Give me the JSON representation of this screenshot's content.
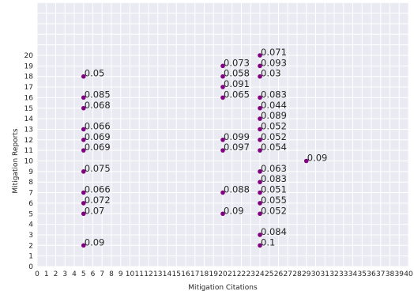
{
  "chart_data": {
    "type": "scatter",
    "title": "",
    "xlabel": "Mitigation Citations",
    "ylabel": "Mitigation Reports",
    "xlim": [
      0,
      40
    ],
    "ylim": [
      0,
      20
    ],
    "grid": true,
    "point_color": "#800080",
    "background_color": "#eaeaf2",
    "x_ticks": [
      "0",
      "1",
      "2",
      "3",
      "4",
      "5",
      "6",
      "7",
      "8",
      "9",
      "10",
      "11",
      "12",
      "13",
      "14",
      "15",
      "16",
      "17",
      "18",
      "19",
      "20",
      "21",
      "22",
      "23",
      "24",
      "25",
      "26",
      "27",
      "28",
      "29",
      "30",
      "31",
      "32",
      "33",
      "34",
      "35",
      "36",
      "37",
      "38",
      "39",
      "40"
    ],
    "y_ticks": [
      "0",
      "1",
      "2",
      "3",
      "4",
      "5",
      "6",
      "7",
      "8",
      "9",
      "10",
      "11",
      "12",
      "13",
      "14",
      "15",
      "16",
      "17",
      "18",
      "19",
      "20"
    ],
    "points": [
      {
        "x": 5,
        "y": 18,
        "label": "0.05"
      },
      {
        "x": 5,
        "y": 16,
        "label": "0.085"
      },
      {
        "x": 5,
        "y": 15,
        "label": "0.068"
      },
      {
        "x": 5,
        "y": 13,
        "label": "0.066"
      },
      {
        "x": 5,
        "y": 12,
        "label": "0.069"
      },
      {
        "x": 5,
        "y": 11,
        "label": "0.069"
      },
      {
        "x": 5,
        "y": 9,
        "label": "0.075"
      },
      {
        "x": 5,
        "y": 7,
        "label": "0.066"
      },
      {
        "x": 5,
        "y": 6,
        "label": "0.072"
      },
      {
        "x": 5,
        "y": 5,
        "label": "0.07"
      },
      {
        "x": 5,
        "y": 2,
        "label": "0.09"
      },
      {
        "x": 20,
        "y": 19,
        "label": "0.073"
      },
      {
        "x": 20,
        "y": 18,
        "label": "0.058"
      },
      {
        "x": 20,
        "y": 17,
        "label": "0.091"
      },
      {
        "x": 20,
        "y": 16,
        "label": "0.065"
      },
      {
        "x": 20,
        "y": 12,
        "label": "0.099"
      },
      {
        "x": 20,
        "y": 11,
        "label": "0.097"
      },
      {
        "x": 20,
        "y": 7,
        "label": "0.088"
      },
      {
        "x": 20,
        "y": 5,
        "label": "0.09"
      },
      {
        "x": 24,
        "y": 20,
        "label": "0.071"
      },
      {
        "x": 24,
        "y": 19,
        "label": "0.093"
      },
      {
        "x": 24,
        "y": 18,
        "label": "0.03"
      },
      {
        "x": 24,
        "y": 16,
        "label": "0.083"
      },
      {
        "x": 24,
        "y": 15,
        "label": "0.044"
      },
      {
        "x": 24,
        "y": 14,
        "label": "0.089"
      },
      {
        "x": 24,
        "y": 13,
        "label": "0.052"
      },
      {
        "x": 24,
        "y": 12,
        "label": "0.052"
      },
      {
        "x": 24,
        "y": 11,
        "label": "0.054"
      },
      {
        "x": 24,
        "y": 9,
        "label": "0.063"
      },
      {
        "x": 24,
        "y": 8,
        "label": "0.083"
      },
      {
        "x": 24,
        "y": 7,
        "label": "0.051"
      },
      {
        "x": 24,
        "y": 6,
        "label": "0.055"
      },
      {
        "x": 24,
        "y": 5,
        "label": "0.052"
      },
      {
        "x": 24,
        "y": 3,
        "label": "0.084"
      },
      {
        "x": 24,
        "y": 2,
        "label": "0.1"
      },
      {
        "x": 29,
        "y": 10,
        "label": "0.09"
      }
    ]
  }
}
